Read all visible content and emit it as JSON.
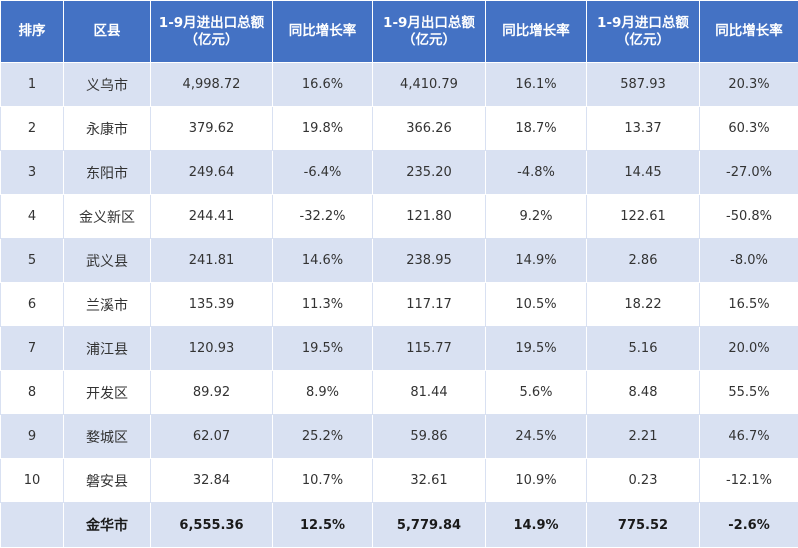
{
  "headers": [
    "排序",
    "区县",
    "1-9月进出口总额（亿元）",
    "同比增长率",
    "1-9月出口总额（亿元）",
    "同比增长率",
    "1-9月进口总额（亿元）",
    "同比增长率"
  ],
  "rows": [
    [
      "1",
      "义乌市",
      "4,998.72",
      "16.6%",
      "4,410.79",
      "16.1%",
      "587.93",
      "20.3%"
    ],
    [
      "2",
      "永康市",
      "379.62",
      "19.8%",
      "366.26",
      "18.7%",
      "13.37",
      "60.3%"
    ],
    [
      "3",
      "东阳市",
      "249.64",
      "-6.4%",
      "235.20",
      "-4.8%",
      "14.45",
      "-27.0%"
    ],
    [
      "4",
      "金义新区",
      "244.41",
      "-32.2%",
      "121.80",
      "9.2%",
      "122.61",
      "-50.8%"
    ],
    [
      "5",
      "武义县",
      "241.81",
      "14.6%",
      "238.95",
      "14.9%",
      "2.86",
      "-8.0%"
    ],
    [
      "6",
      "兰溪市",
      "135.39",
      "11.3%",
      "117.17",
      "10.5%",
      "18.22",
      "16.5%"
    ],
    [
      "7",
      "浦江县",
      "120.93",
      "19.5%",
      "115.77",
      "19.5%",
      "5.16",
      "20.0%"
    ],
    [
      "8",
      "开发区",
      "89.92",
      "8.9%",
      "81.44",
      "5.6%",
      "8.48",
      "55.5%"
    ],
    [
      "9",
      "婺城区",
      "62.07",
      "25.2%",
      "59.86",
      "24.5%",
      "2.21",
      "46.7%"
    ],
    [
      "10",
      "磐安县",
      "32.84",
      "10.7%",
      "32.61",
      "10.9%",
      "0.23",
      "-12.1%"
    ]
  ],
  "total": [
    "",
    "金华市",
    "6,555.36",
    "12.5%",
    "5,779.84",
    "14.9%",
    "775.52",
    "-2.6%"
  ],
  "colors": {
    "header_bg": "#4472c4",
    "header_text": "#ffffff",
    "band_bg": "#d9e1f2",
    "plain_bg": "#ffffff"
  }
}
